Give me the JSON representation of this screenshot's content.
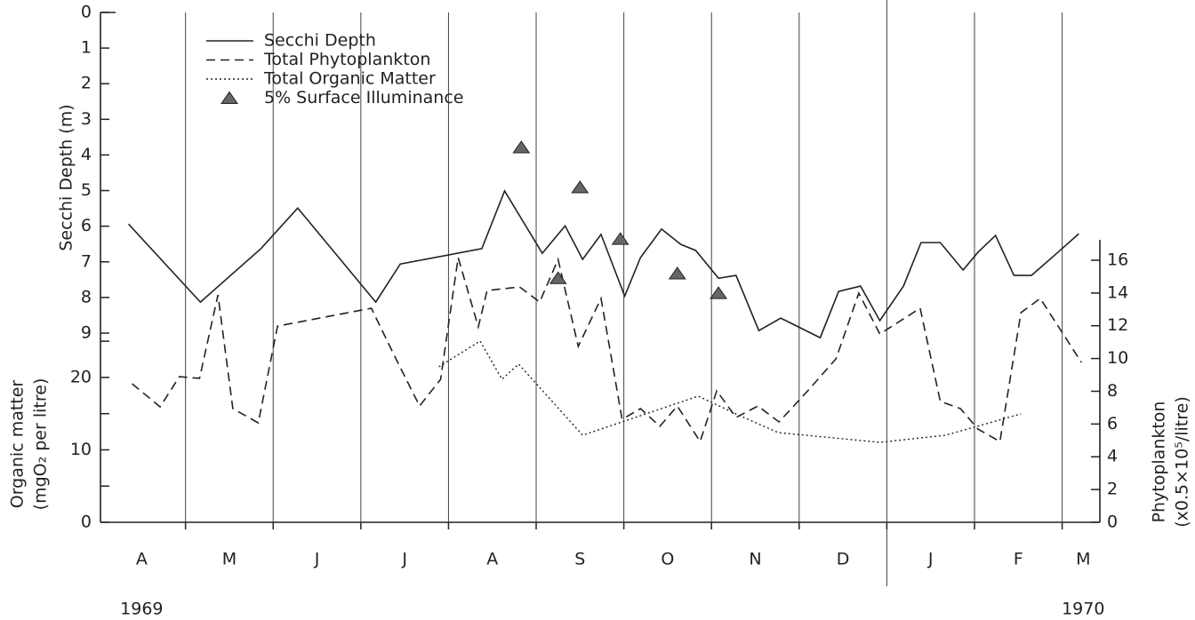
{
  "chart_data": {
    "type": "multi-axis-line",
    "ylabel": "Secchi Depth (m)",
    "y3label": [
      "Organic matter",
      "(mgO₂ per litre)"
    ],
    "y2label": [
      "Phytoplankton",
      "(x0.5×10⁵/litre)"
    ],
    "xlim": [
      0.03,
      11.43
    ],
    "xticks": [
      {
        "value": 0.5,
        "label": "A"
      },
      {
        "value": 1.5,
        "label": "M"
      },
      {
        "value": 2.5,
        "label": "J"
      },
      {
        "value": 3.5,
        "label": "J"
      },
      {
        "value": 4.5,
        "label": "A"
      },
      {
        "value": 5.5,
        "label": "S"
      },
      {
        "value": 6.5,
        "label": "O"
      },
      {
        "value": 7.5,
        "label": "N"
      },
      {
        "value": 8.5,
        "label": "D"
      },
      {
        "value": 9.5,
        "label": "J"
      },
      {
        "value": 10.5,
        "label": "F"
      },
      {
        "value": 11.24,
        "label": "M"
      }
    ],
    "xgrid": [
      1,
      2,
      3,
      4,
      5,
      6,
      7,
      8,
      9,
      10,
      11
    ],
    "year_divider": 9,
    "year_labels": [
      {
        "x": 0.5,
        "text": "1969"
      },
      {
        "x": 11.24,
        "text": "1970"
      }
    ],
    "ylim": [
      14.31,
      0
    ],
    "yticks": [
      0,
      1,
      2,
      3,
      4,
      5,
      6,
      7,
      8,
      9
    ],
    "y3lim": [
      0,
      70.4
    ],
    "y3ticks": [
      0,
      10,
      20
    ],
    "y3minor": [
      5,
      15,
      25
    ],
    "y2lim": [
      0,
      31.13
    ],
    "y2ticks": [
      0,
      2,
      4,
      6,
      8,
      10,
      12,
      14,
      16
    ],
    "legend": "upper left",
    "series": [
      {
        "name": "Secchi Depth",
        "style": "solid",
        "axis": "y",
        "color": "#222222",
        "x": [
          0.35,
          1.17,
          1.86,
          2.28,
          3.17,
          3.45,
          4.38,
          4.64,
          5.07,
          5.33,
          5.53,
          5.74,
          6.01,
          6.19,
          6.43,
          6.65,
          6.82,
          7.08,
          7.28,
          7.54,
          7.79,
          8.24,
          8.45,
          8.7,
          8.92,
          9.19,
          9.39,
          9.61,
          9.87,
          10.04,
          10.24,
          10.45,
          10.65,
          10.93,
          11.19
        ],
        "values": [
          5.94,
          8.13,
          6.63,
          5.49,
          8.13,
          7.06,
          6.63,
          5.01,
          6.76,
          5.99,
          6.93,
          6.23,
          7.96,
          6.88,
          6.08,
          6.51,
          6.68,
          7.46,
          7.38,
          8.93,
          8.58,
          9.13,
          7.83,
          7.68,
          8.65,
          7.68,
          6.46,
          6.46,
          7.23,
          6.73,
          6.26,
          7.38,
          7.38,
          6.78,
          6.21
        ]
      },
      {
        "name": "Total Phytoplankton",
        "style": "dashed",
        "axis": "y2",
        "color": "#222222",
        "x": [
          0.39,
          0.71,
          0.93,
          1.16,
          1.37,
          1.54,
          1.83,
          2.05,
          3.12,
          3.38,
          3.67,
          3.91,
          4.11,
          4.34,
          4.44,
          4.81,
          5.04,
          5.25,
          5.48,
          5.74,
          5.98,
          6.19,
          6.41,
          6.61,
          6.87,
          7.06,
          7.28,
          7.53,
          7.77,
          8.08,
          8.42,
          8.68,
          8.92,
          9.38,
          9.61,
          9.84,
          10.04,
          10.29,
          10.53,
          10.75,
          11.22
        ],
        "values": [
          8.46,
          7.05,
          8.89,
          8.79,
          13.88,
          6.94,
          6.07,
          11.98,
          13.07,
          10.2,
          7.1,
          8.73,
          16.16,
          11.93,
          14.15,
          14.37,
          13.45,
          16.05,
          10.74,
          13.67,
          6.29,
          6.94,
          5.86,
          7.1,
          4.93,
          8.03,
          6.4,
          7.1,
          6.13,
          7.92,
          9.98,
          13.99,
          11.5,
          13.07,
          7.38,
          6.94,
          5.69,
          4.93,
          12.8,
          13.67,
          9.76
        ]
      },
      {
        "name": "Total Organic Matter",
        "style": "dotted",
        "axis": "y3",
        "color": "#222222",
        "x": [
          3.89,
          4.36,
          4.61,
          4.8,
          5.53,
          6.85,
          7.3,
          7.76,
          8.92,
          9.67,
          10.53
        ],
        "values": [
          21.47,
          25.03,
          19.75,
          21.84,
          12.02,
          17.42,
          14.85,
          12.39,
          11.04,
          12.02,
          14.97
        ]
      },
      {
        "name": "5% Surface Illuminance",
        "style": "triangle",
        "axis": "y",
        "color": "#666666",
        "x": [
          4.83,
          5.25,
          5.5,
          5.96,
          6.61,
          7.08
        ],
        "values": [
          3.79,
          7.46,
          4.91,
          6.36,
          7.33,
          7.88
        ]
      }
    ]
  }
}
